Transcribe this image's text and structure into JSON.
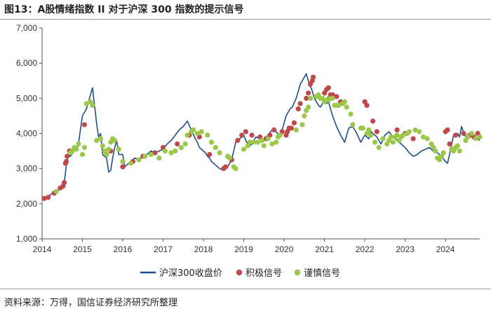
{
  "header": {
    "title": "图13：A股情绪指数 II 对于沪深 300 指数的提示信号"
  },
  "footer": {
    "source": "资料来源：万得，国信证券经济研究所整理"
  },
  "chart_data": {
    "type": "line",
    "title": "图13：A股情绪指数 II 对于沪深 300 指数的提示信号",
    "xlabel": "",
    "ylabel": "",
    "xlim": [
      2014.0,
      2024.85
    ],
    "ylim": [
      1000,
      7000
    ],
    "yticks": [
      1000,
      2000,
      3000,
      4000,
      5000,
      6000,
      7000
    ],
    "ytick_labels": [
      "1,000",
      "2,000",
      "3,000",
      "4,000",
      "5,000",
      "6,000",
      "7,000"
    ],
    "xticks": [
      2014,
      2015,
      2016,
      2017,
      2018,
      2019,
      2020,
      2021,
      2022,
      2023,
      2024
    ],
    "xtick_labels": [
      "2014",
      "2015",
      "2016",
      "2017",
      "2018",
      "2019",
      "2020",
      "2021",
      "2022",
      "2023",
      "2024"
    ],
    "grid": false,
    "legend": "bottom-center",
    "series": [
      {
        "name": "沪深300收盘价",
        "kind": "line",
        "color": "#1f4e8c",
        "x": [
          2014.0,
          2014.1,
          2014.2,
          2014.3,
          2014.4,
          2014.5,
          2014.55,
          2014.6,
          2014.65,
          2014.7,
          2014.8,
          2014.85,
          2014.9,
          2014.95,
          2015.0,
          2015.05,
          2015.1,
          2015.15,
          2015.2,
          2015.25,
          2015.3,
          2015.35,
          2015.4,
          2015.45,
          2015.5,
          2015.55,
          2015.6,
          2015.65,
          2015.7,
          2015.75,
          2015.8,
          2015.85,
          2015.9,
          2016.0,
          2016.05,
          2016.1,
          2016.2,
          2016.3,
          2016.4,
          2016.5,
          2016.6,
          2016.7,
          2016.8,
          2016.9,
          2017.0,
          2017.1,
          2017.2,
          2017.3,
          2017.4,
          2017.5,
          2017.6,
          2017.7,
          2017.8,
          2017.85,
          2017.9,
          2018.0,
          2018.05,
          2018.1,
          2018.15,
          2018.2,
          2018.3,
          2018.4,
          2018.5,
          2018.55,
          2018.6,
          2018.7,
          2018.8,
          2018.9,
          2019.0,
          2019.05,
          2019.1,
          2019.15,
          2019.2,
          2019.25,
          2019.3,
          2019.4,
          2019.5,
          2019.6,
          2019.7,
          2019.8,
          2019.9,
          2020.0,
          2020.05,
          2020.1,
          2020.15,
          2020.2,
          2020.3,
          2020.4,
          2020.5,
          2020.55,
          2020.6,
          2020.65,
          2020.7,
          2020.75,
          2020.8,
          2020.85,
          2020.9,
          2021.0,
          2021.05,
          2021.1,
          2021.15,
          2021.2,
          2021.3,
          2021.4,
          2021.5,
          2021.6,
          2021.7,
          2021.8,
          2021.9,
          2022.0,
          2022.1,
          2022.15,
          2022.2,
          2022.3,
          2022.35,
          2022.4,
          2022.5,
          2022.6,
          2022.7,
          2022.8,
          2022.9,
          2023.0,
          2023.1,
          2023.2,
          2023.3,
          2023.4,
          2023.5,
          2023.6,
          2023.7,
          2023.8,
          2023.9,
          2024.0,
          2024.05,
          2024.1,
          2024.2,
          2024.3,
          2024.35,
          2024.4,
          2024.45,
          2024.5,
          2024.55,
          2024.6,
          2024.7,
          2024.8,
          2024.85
        ],
        "values": [
          2150,
          2180,
          2250,
          2330,
          2380,
          2480,
          2580,
          3100,
          3400,
          3350,
          3500,
          3520,
          3700,
          4100,
          4500,
          4600,
          4700,
          4900,
          5100,
          5300,
          4800,
          4300,
          3900,
          4000,
          3400,
          3350,
          3300,
          2900,
          2950,
          3300,
          3600,
          3800,
          3400,
          3400,
          3050,
          3100,
          3200,
          3300,
          3250,
          3350,
          3400,
          3500,
          3450,
          3500,
          3550,
          3700,
          3800,
          3950,
          4100,
          4200,
          4350,
          4100,
          3850,
          3750,
          3600,
          3500,
          3450,
          3350,
          3300,
          3200,
          3100,
          3000,
          2950,
          3100,
          3050,
          3250,
          3750,
          3850,
          3950,
          3800,
          3700,
          3650,
          3700,
          3800,
          3900,
          3850,
          3800,
          3950,
          4100,
          4050,
          3900,
          4300,
          4500,
          4600,
          4700,
          4750,
          5000,
          5400,
          5600,
          5700,
          5500,
          5350,
          5200,
          5000,
          4900,
          4800,
          4750,
          4950,
          4850,
          4900,
          4700,
          4500,
          4200,
          3950,
          3750,
          4150,
          4200,
          4000,
          3750,
          3950,
          3850,
          4050,
          4000,
          3900,
          3800,
          3700,
          3950,
          4050,
          3900,
          3800,
          3700,
          3600,
          3450,
          3350,
          3400,
          3500,
          3550,
          3600,
          3500,
          3450,
          3350,
          3200,
          3150,
          3400,
          3950,
          4000,
          3900,
          4200,
          4000,
          3900,
          3850,
          3950,
          3900,
          3850,
          3800
        ]
      },
      {
        "name": "积极信号",
        "kind": "scatter",
        "color": "#c0474a",
        "x": [
          2014.05,
          2014.15,
          2014.3,
          2014.45,
          2014.52,
          2014.55,
          2014.58,
          2014.6,
          2014.62,
          2014.68,
          2015.05,
          2015.7,
          2016.0,
          2016.25,
          2016.5,
          2016.8,
          2017.0,
          2017.35,
          2017.65,
          2017.9,
          2018.15,
          2018.5,
          2018.55,
          2018.7,
          2018.85,
          2018.95,
          2019.05,
          2019.2,
          2019.4,
          2019.55,
          2019.65,
          2019.75,
          2019.95,
          2020.05,
          2020.08,
          2020.12,
          2020.18,
          2020.25,
          2020.35,
          2020.4,
          2020.55,
          2020.6,
          2020.65,
          2020.7,
          2020.72,
          2021.0,
          2021.05,
          2021.1,
          2021.12,
          2021.15,
          2021.2,
          2021.3,
          2021.4,
          2022.0,
          2022.05,
          2022.2,
          2022.3,
          2022.8,
          2023.0,
          2023.2,
          2024.0,
          2024.05,
          2024.1,
          2024.25,
          2024.45,
          2024.55,
          2024.6,
          2024.7,
          2024.8
        ],
        "values": [
          2150,
          2180,
          2300,
          2450,
          2500,
          2600,
          3150,
          3200,
          3350,
          3500,
          4250,
          3500,
          3050,
          3200,
          3350,
          3450,
          3600,
          3700,
          3950,
          3900,
          3400,
          3000,
          3050,
          3250,
          3800,
          3950,
          4050,
          3950,
          3900,
          3850,
          3950,
          4100,
          4050,
          3950,
          4050,
          4150,
          4150,
          4300,
          4700,
          4850,
          5000,
          5150,
          5400,
          5500,
          5600,
          5150,
          5250,
          5300,
          5000,
          5100,
          5100,
          5050,
          4900,
          4900,
          4800,
          4350,
          4050,
          4100,
          4000,
          3850,
          4050,
          4100,
          3700,
          3950,
          4000,
          3900,
          3950,
          3900,
          4000
        ]
      },
      {
        "name": "谨慎信号",
        "kind": "scatter",
        "color": "#9bc74a",
        "x": [
          2014.35,
          2014.7,
          2014.75,
          2014.8,
          2014.85,
          2014.9,
          2015.0,
          2015.05,
          2015.1,
          2015.2,
          2015.25,
          2015.35,
          2015.45,
          2015.5,
          2015.55,
          2015.6,
          2015.65,
          2015.7,
          2015.75,
          2015.8,
          2015.9,
          2016.0,
          2016.2,
          2016.4,
          2016.55,
          2016.7,
          2016.9,
          2017.05,
          2017.2,
          2017.3,
          2017.45,
          2017.55,
          2017.6,
          2017.7,
          2017.75,
          2017.85,
          2017.95,
          2018.1,
          2018.2,
          2018.3,
          2018.4,
          2018.6,
          2018.65,
          2018.75,
          2018.8,
          2019.0,
          2019.1,
          2019.15,
          2019.25,
          2019.35,
          2019.45,
          2019.5,
          2019.6,
          2019.7,
          2019.8,
          2019.85,
          2019.9,
          2020.3,
          2020.45,
          2020.5,
          2020.55,
          2020.6,
          2020.65,
          2020.8,
          2020.85,
          2020.9,
          2020.95,
          2021.0,
          2021.05,
          2021.1,
          2021.15,
          2021.2,
          2021.25,
          2021.3,
          2021.35,
          2021.45,
          2021.5,
          2021.55,
          2021.65,
          2021.7,
          2021.9,
          2021.95,
          2022.05,
          2022.1,
          2022.15,
          2022.25,
          2022.35,
          2022.45,
          2022.55,
          2022.6,
          2022.65,
          2022.7,
          2022.75,
          2022.8,
          2022.85,
          2022.9,
          2022.95,
          2023.05,
          2023.1,
          2023.25,
          2023.35,
          2023.45,
          2023.55,
          2023.65,
          2023.7,
          2023.75,
          2023.8,
          2023.85,
          2023.9,
          2023.95,
          2024.15,
          2024.2,
          2024.25,
          2024.3,
          2024.35,
          2024.5,
          2024.55,
          2024.65,
          2024.75,
          2024.85
        ],
        "values": [
          2350,
          3450,
          3500,
          3600,
          3550,
          3700,
          3400,
          3600,
          4850,
          4900,
          4800,
          3800,
          3850,
          3650,
          3500,
          3400,
          3550,
          3750,
          3850,
          3800,
          3550,
          3200,
          3150,
          3250,
          3350,
          3400,
          3300,
          3500,
          3450,
          3500,
          3600,
          3700,
          3950,
          4050,
          4100,
          4000,
          4050,
          3950,
          3750,
          3600,
          3450,
          3350,
          3300,
          3050,
          3000,
          3550,
          3650,
          3750,
          3750,
          3750,
          3800,
          3650,
          3850,
          3700,
          3750,
          3900,
          3950,
          4100,
          4250,
          4500,
          4650,
          4750,
          5000,
          5050,
          5100,
          5000,
          5000,
          4900,
          4950,
          4950,
          5000,
          5000,
          4800,
          4800,
          4800,
          4850,
          4900,
          4750,
          4550,
          4250,
          4150,
          4150,
          4000,
          4100,
          3950,
          3750,
          3600,
          3850,
          3700,
          3800,
          3900,
          3750,
          3900,
          3950,
          3800,
          3900,
          3950,
          4000,
          4050,
          4100,
          4050,
          3900,
          3850,
          3700,
          3600,
          3500,
          3300,
          3250,
          3350,
          3450,
          3550,
          3500,
          3600,
          3650,
          3500,
          3800,
          3900,
          4000,
          3850,
          3900
        ]
      }
    ]
  }
}
